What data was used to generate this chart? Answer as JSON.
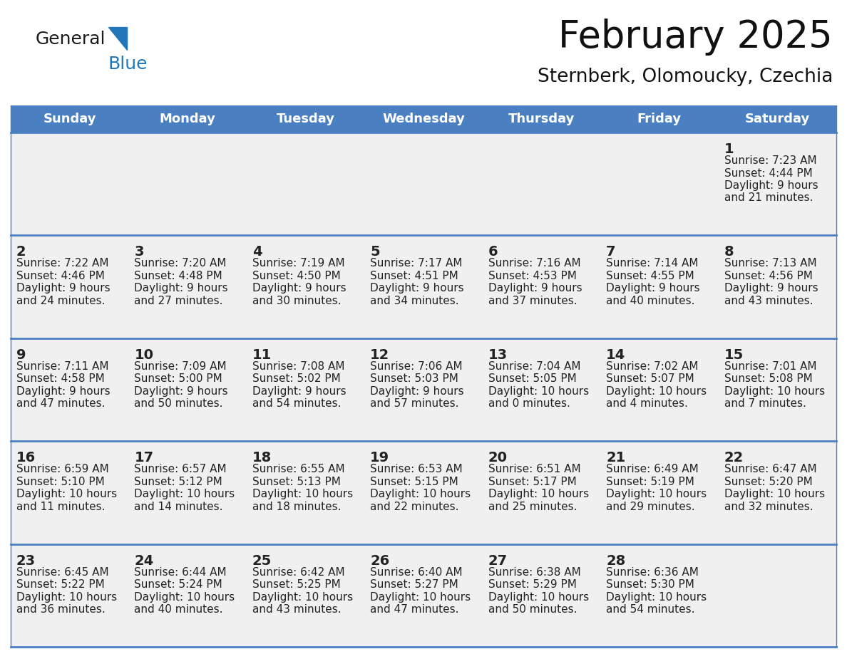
{
  "title": "February 2025",
  "subtitle": "Sternberk, Olomoucky, Czechia",
  "header_bg_color": "#4A7FC1",
  "header_text_color": "#FFFFFF",
  "cell_bg_color": "#F0F0F0",
  "cell_border_color": "#4A7FC1",
  "day_names": [
    "Sunday",
    "Monday",
    "Tuesday",
    "Wednesday",
    "Thursday",
    "Friday",
    "Saturday"
  ],
  "text_color": "#222222",
  "logo_general_color": "#1a1a1a",
  "logo_blue_color": "#2277BB",
  "calendar_data": [
    [
      null,
      null,
      null,
      null,
      null,
      null,
      {
        "day": 1,
        "sunrise": "7:23 AM",
        "sunset": "4:44 PM",
        "daylight_line1": "9 hours",
        "daylight_line2": "and 21 minutes."
      }
    ],
    [
      {
        "day": 2,
        "sunrise": "7:22 AM",
        "sunset": "4:46 PM",
        "daylight_line1": "9 hours",
        "daylight_line2": "and 24 minutes."
      },
      {
        "day": 3,
        "sunrise": "7:20 AM",
        "sunset": "4:48 PM",
        "daylight_line1": "9 hours",
        "daylight_line2": "and 27 minutes."
      },
      {
        "day": 4,
        "sunrise": "7:19 AM",
        "sunset": "4:50 PM",
        "daylight_line1": "9 hours",
        "daylight_line2": "and 30 minutes."
      },
      {
        "day": 5,
        "sunrise": "7:17 AM",
        "sunset": "4:51 PM",
        "daylight_line1": "9 hours",
        "daylight_line2": "and 34 minutes."
      },
      {
        "day": 6,
        "sunrise": "7:16 AM",
        "sunset": "4:53 PM",
        "daylight_line1": "9 hours",
        "daylight_line2": "and 37 minutes."
      },
      {
        "day": 7,
        "sunrise": "7:14 AM",
        "sunset": "4:55 PM",
        "daylight_line1": "9 hours",
        "daylight_line2": "and 40 minutes."
      },
      {
        "day": 8,
        "sunrise": "7:13 AM",
        "sunset": "4:56 PM",
        "daylight_line1": "9 hours",
        "daylight_line2": "and 43 minutes."
      }
    ],
    [
      {
        "day": 9,
        "sunrise": "7:11 AM",
        "sunset": "4:58 PM",
        "daylight_line1": "9 hours",
        "daylight_line2": "and 47 minutes."
      },
      {
        "day": 10,
        "sunrise": "7:09 AM",
        "sunset": "5:00 PM",
        "daylight_line1": "9 hours",
        "daylight_line2": "and 50 minutes."
      },
      {
        "day": 11,
        "sunrise": "7:08 AM",
        "sunset": "5:02 PM",
        "daylight_line1": "9 hours",
        "daylight_line2": "and 54 minutes."
      },
      {
        "day": 12,
        "sunrise": "7:06 AM",
        "sunset": "5:03 PM",
        "daylight_line1": "9 hours",
        "daylight_line2": "and 57 minutes."
      },
      {
        "day": 13,
        "sunrise": "7:04 AM",
        "sunset": "5:05 PM",
        "daylight_line1": "10 hours",
        "daylight_line2": "and 0 minutes."
      },
      {
        "day": 14,
        "sunrise": "7:02 AM",
        "sunset": "5:07 PM",
        "daylight_line1": "10 hours",
        "daylight_line2": "and 4 minutes."
      },
      {
        "day": 15,
        "sunrise": "7:01 AM",
        "sunset": "5:08 PM",
        "daylight_line1": "10 hours",
        "daylight_line2": "and 7 minutes."
      }
    ],
    [
      {
        "day": 16,
        "sunrise": "6:59 AM",
        "sunset": "5:10 PM",
        "daylight_line1": "10 hours",
        "daylight_line2": "and 11 minutes."
      },
      {
        "day": 17,
        "sunrise": "6:57 AM",
        "sunset": "5:12 PM",
        "daylight_line1": "10 hours",
        "daylight_line2": "and 14 minutes."
      },
      {
        "day": 18,
        "sunrise": "6:55 AM",
        "sunset": "5:13 PM",
        "daylight_line1": "10 hours",
        "daylight_line2": "and 18 minutes."
      },
      {
        "day": 19,
        "sunrise": "6:53 AM",
        "sunset": "5:15 PM",
        "daylight_line1": "10 hours",
        "daylight_line2": "and 22 minutes."
      },
      {
        "day": 20,
        "sunrise": "6:51 AM",
        "sunset": "5:17 PM",
        "daylight_line1": "10 hours",
        "daylight_line2": "and 25 minutes."
      },
      {
        "day": 21,
        "sunrise": "6:49 AM",
        "sunset": "5:19 PM",
        "daylight_line1": "10 hours",
        "daylight_line2": "and 29 minutes."
      },
      {
        "day": 22,
        "sunrise": "6:47 AM",
        "sunset": "5:20 PM",
        "daylight_line1": "10 hours",
        "daylight_line2": "and 32 minutes."
      }
    ],
    [
      {
        "day": 23,
        "sunrise": "6:45 AM",
        "sunset": "5:22 PM",
        "daylight_line1": "10 hours",
        "daylight_line2": "and 36 minutes."
      },
      {
        "day": 24,
        "sunrise": "6:44 AM",
        "sunset": "5:24 PM",
        "daylight_line1": "10 hours",
        "daylight_line2": "and 40 minutes."
      },
      {
        "day": 25,
        "sunrise": "6:42 AM",
        "sunset": "5:25 PM",
        "daylight_line1": "10 hours",
        "daylight_line2": "and 43 minutes."
      },
      {
        "day": 26,
        "sunrise": "6:40 AM",
        "sunset": "5:27 PM",
        "daylight_line1": "10 hours",
        "daylight_line2": "and 47 minutes."
      },
      {
        "day": 27,
        "sunrise": "6:38 AM",
        "sunset": "5:29 PM",
        "daylight_line1": "10 hours",
        "daylight_line2": "and 50 minutes."
      },
      {
        "day": 28,
        "sunrise": "6:36 AM",
        "sunset": "5:30 PM",
        "daylight_line1": "10 hours",
        "daylight_line2": "and 54 minutes."
      },
      null
    ]
  ],
  "fig_width": 11.88,
  "fig_height": 9.18,
  "dpi": 100
}
